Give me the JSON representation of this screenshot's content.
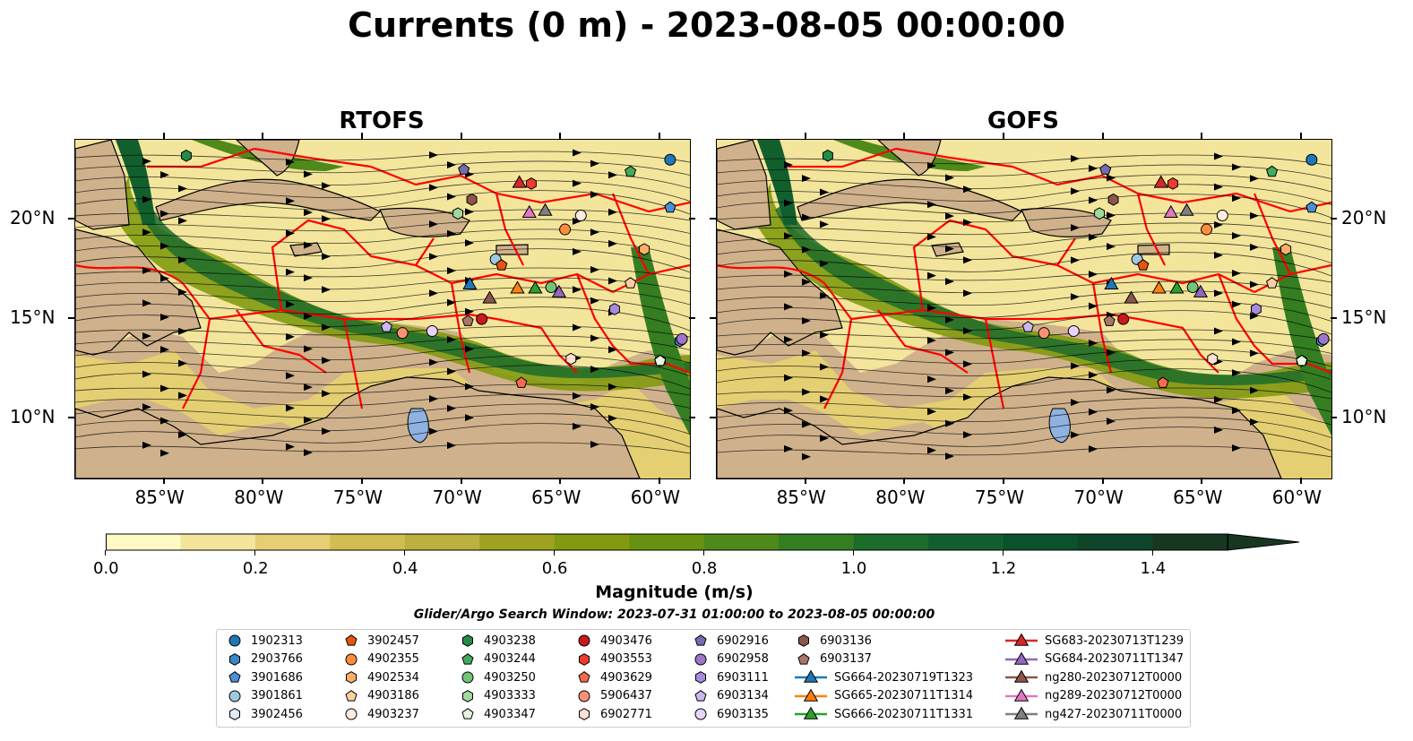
{
  "title": "Currents (0 m) - 2023-08-05 00:00:00",
  "panels": [
    {
      "title": "RTOFS"
    },
    {
      "title": "GOFS"
    }
  ],
  "lon_ticks": [
    "85°W",
    "80°W",
    "75°W",
    "70°W",
    "65°W",
    "60°W"
  ],
  "lon_values": [
    -85,
    -80,
    -75,
    -70,
    -65,
    -60
  ],
  "lat_ticks": [
    "20°N",
    "15°N",
    "10°N"
  ],
  "lat_values": [
    20,
    15,
    10
  ],
  "extent": {
    "lon": [
      -89.5,
      -58.5
    ],
    "lat": [
      7,
      24
    ]
  },
  "colors": {
    "land": "#cfb18b",
    "eez_lines": "#ff0000",
    "streamlines": "#000000",
    "lakes": "#8fb2e0"
  },
  "colorbar": {
    "label": "Magnitude (m/s)",
    "ticks": [
      "0.0",
      "0.2",
      "0.4",
      "0.6",
      "0.8",
      "1.0",
      "1.2",
      "1.4"
    ],
    "tick_values": [
      0,
      0.2,
      0.4,
      0.6,
      0.8,
      1.0,
      1.2,
      1.4
    ],
    "min": 0,
    "max": 1.5,
    "extend": "max",
    "bins": [
      "#fff9c4",
      "#f3e59b",
      "#e4cf73",
      "#d1be52",
      "#bcb03e",
      "#9fa21f",
      "#829a10",
      "#679211",
      "#4f891a",
      "#357d21",
      "#1c6c2c",
      "#125f2e",
      "#0b512c",
      "#0e4427",
      "#173721"
    ]
  },
  "search_window": "Glider/Argo Search Window: 2023-07-31 01:00:00 to 2023-08-05 00:00:00",
  "legend": [
    {
      "label": "1902313",
      "marker": "circle",
      "color": "#1f77b4"
    },
    {
      "label": "2903766",
      "marker": "hexagon",
      "color": "#3d85c6"
    },
    {
      "label": "3901686",
      "marker": "pentagon",
      "color": "#4a90d9"
    },
    {
      "label": "3901861",
      "marker": "circle",
      "color": "#9ecae1"
    },
    {
      "label": "3902456",
      "marker": "hexagon",
      "color": "#deebf7"
    },
    {
      "label": "3902457",
      "marker": "pentagon",
      "color": "#e6550d"
    },
    {
      "label": "4902355",
      "marker": "circle",
      "color": "#fd8d3c"
    },
    {
      "label": "4902534",
      "marker": "hexagon",
      "color": "#fdae6b"
    },
    {
      "label": "4903186",
      "marker": "pentagon",
      "color": "#fdd0a2"
    },
    {
      "label": "4903237",
      "marker": "circle",
      "color": "#feedde"
    },
    {
      "label": "4903238",
      "marker": "hexagon",
      "color": "#238b45"
    },
    {
      "label": "4903244",
      "marker": "pentagon",
      "color": "#41ab5d"
    },
    {
      "label": "4903250",
      "marker": "circle",
      "color": "#74c476"
    },
    {
      "label": "4903333",
      "marker": "hexagon",
      "color": "#a1d99b"
    },
    {
      "label": "4903347",
      "marker": "pentagon",
      "color": "#e5f5e0"
    },
    {
      "label": "4903476",
      "marker": "circle",
      "color": "#cb181d"
    },
    {
      "label": "4903553",
      "marker": "hexagon",
      "color": "#ef3b2c"
    },
    {
      "label": "4903629",
      "marker": "pentagon",
      "color": "#fb6a4a"
    },
    {
      "label": "5906437",
      "marker": "circle",
      "color": "#fc9272"
    },
    {
      "label": "6902771",
      "marker": "hexagon",
      "color": "#fee0d2"
    },
    {
      "label": "6902916",
      "marker": "pentagon",
      "color": "#756bb1"
    },
    {
      "label": "6902958",
      "marker": "circle",
      "color": "#9e75cc"
    },
    {
      "label": "6903111",
      "marker": "hexagon",
      "color": "#a98bdc"
    },
    {
      "label": "6903134",
      "marker": "pentagon",
      "color": "#cbb8f0"
    },
    {
      "label": "6903135",
      "marker": "circle",
      "color": "#e8d4fb"
    },
    {
      "label": "6903136",
      "marker": "hexagon",
      "color": "#8c564b"
    },
    {
      "label": "6903137",
      "marker": "pentagon",
      "color": "#a9766a"
    },
    {
      "label": "SG664-20230719T1323",
      "marker": "triangle",
      "color": "#1f77b4"
    },
    {
      "label": "SG665-20230711T1314",
      "marker": "triangle",
      "color": "#ff7f0e"
    },
    {
      "label": "SG666-20230711T1331",
      "marker": "triangle",
      "color": "#2ca02c"
    },
    {
      "label": "SG683-20230713T1239",
      "marker": "triangle",
      "color": "#d62728"
    },
    {
      "label": "SG684-20230711T1347",
      "marker": "triangle",
      "color": "#9467bd"
    },
    {
      "label": "ng280-20230712T0000",
      "marker": "triangle",
      "color": "#8c564b"
    },
    {
      "label": "ng289-20230712T0000",
      "marker": "triangle",
      "color": "#e377c2"
    },
    {
      "label": "ng427-20230711T0000",
      "marker": "triangle",
      "color": "#7f7f7f"
    }
  ],
  "floats": [
    {
      "id": "1902313",
      "lon": -59.5,
      "lat": 23.0
    },
    {
      "id": "2903766",
      "lon": -59.0,
      "lat": 13.9
    },
    {
      "id": "3901686",
      "lon": -59.5,
      "lat": 20.6
    },
    {
      "id": "3901861",
      "lon": -68.3,
      "lat": 18.0
    },
    {
      "id": "3902456",
      "lon": -60.0,
      "lat": 12.9
    },
    {
      "id": "3902457",
      "lon": -68.0,
      "lat": 17.7
    },
    {
      "id": "4902355",
      "lon": -64.8,
      "lat": 19.5
    },
    {
      "id": "4902534",
      "lon": -60.8,
      "lat": 18.5
    },
    {
      "id": "4903186",
      "lon": -61.5,
      "lat": 16.8
    },
    {
      "id": "4903237",
      "lon": -64.0,
      "lat": 20.2
    },
    {
      "id": "4903238",
      "lon": -83.9,
      "lat": 23.2
    },
    {
      "id": "4903244",
      "lon": -61.5,
      "lat": 22.4
    },
    {
      "id": "4903250",
      "lon": -65.5,
      "lat": 16.6
    },
    {
      "id": "4903333",
      "lon": -70.2,
      "lat": 20.3
    },
    {
      "id": "4903347",
      "lon": -60.0,
      "lat": 12.9
    },
    {
      "id": "4903476",
      "lon": -69.0,
      "lat": 15.0
    },
    {
      "id": "4903553",
      "lon": -66.5,
      "lat": 21.8
    },
    {
      "id": "4903629",
      "lon": -67.0,
      "lat": 11.8
    },
    {
      "id": "5906437",
      "lon": -73.0,
      "lat": 14.3
    },
    {
      "id": "6902771",
      "lon": -64.5,
      "lat": 13.0
    },
    {
      "id": "6902916",
      "lon": -69.9,
      "lat": 22.5
    },
    {
      "id": "6902958",
      "lon": -58.9,
      "lat": 14.0
    },
    {
      "id": "6903111",
      "lon": -62.3,
      "lat": 15.5
    },
    {
      "id": "6903134",
      "lon": -73.8,
      "lat": 14.6
    },
    {
      "id": "6903135",
      "lon": -71.5,
      "lat": 14.4
    },
    {
      "id": "6903136",
      "lon": -69.5,
      "lat": 21.0
    },
    {
      "id": "6903137",
      "lon": -69.7,
      "lat": 14.9
    }
  ],
  "gliders": [
    {
      "id": "SG664-20230719T1323",
      "lon": -69.6,
      "lat": 16.7
    },
    {
      "id": "SG665-20230711T1314",
      "lon": -67.2,
      "lat": 16.5
    },
    {
      "id": "SG666-20230711T1331",
      "lon": -66.3,
      "lat": 16.5
    },
    {
      "id": "SG683-20230713T1239",
      "lon": -67.1,
      "lat": 21.8
    },
    {
      "id": "SG684-20230711T1347",
      "lon": -65.1,
      "lat": 16.3
    },
    {
      "id": "ng280-20230712T0000",
      "lon": -68.6,
      "lat": 16.0
    },
    {
      "id": "ng289-20230712T0000",
      "lon": -66.6,
      "lat": 20.3
    },
    {
      "id": "ng427-20230711T0000",
      "lon": -65.8,
      "lat": 20.4
    }
  ]
}
